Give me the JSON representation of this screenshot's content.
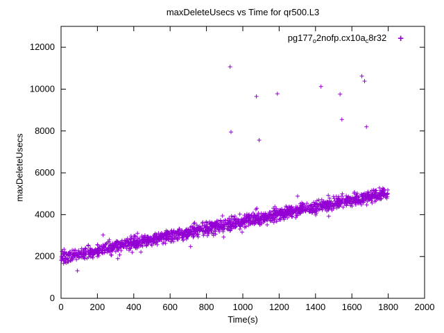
{
  "title": "maxDeleteUsecs vs Time for qr500.L3",
  "axes": {
    "xlabel": "Time(s)",
    "ylabel": "maxDeleteUsecs"
  },
  "legend": {
    "parts": [
      {
        "text": "pg177"
      },
      {
        "text": "o"
      },
      {
        "text": "2nofp.cx10a"
      },
      {
        "text": "c"
      },
      {
        "text": "8r32"
      }
    ],
    "full_name": "pg177_o2nofp.cx10a_c8r32",
    "marker_glyph": "+",
    "position": "top-right"
  },
  "colors": {
    "marker": "#9400d3",
    "axis": "#000000",
    "background": "#ffffff"
  },
  "chart_data": {
    "type": "scatter",
    "title": "maxDeleteUsecs vs Time for qr500.L3",
    "xlabel": "Time(s)",
    "ylabel": "maxDeleteUsecs",
    "xlim": [
      0,
      2000
    ],
    "ylim": [
      0,
      13000
    ],
    "xticks": [
      0,
      200,
      400,
      600,
      800,
      1000,
      1200,
      1400,
      1600,
      1800,
      2000
    ],
    "yticks": [
      0,
      2000,
      4000,
      6000,
      8000,
      10000,
      12000
    ],
    "grid": false,
    "legend_position": "top-right",
    "series": [
      {
        "name": "pg177_o2nofp.cx10a_c8r32",
        "color": "#9400d3",
        "marker": "plus",
        "trend_band": {
          "description": "dense linear rising band of samples",
          "x_min": 0,
          "x_max": 1800,
          "y_at_x_min": 1950,
          "y_at_x_max": 5050,
          "typical_noise": 210,
          "wide_noise": 430,
          "wide_fraction": 0.07,
          "point_count": 1700
        },
        "outliers": [
          [
            90,
            1320
          ],
          [
            930,
            11070
          ],
          [
            935,
            7950
          ],
          [
            1075,
            9650
          ],
          [
            1090,
            7560
          ],
          [
            1190,
            9780
          ],
          [
            1430,
            10120
          ],
          [
            1535,
            9760
          ],
          [
            1545,
            8550
          ],
          [
            1655,
            10620
          ],
          [
            1670,
            10380
          ],
          [
            1680,
            8200
          ]
        ]
      }
    ]
  }
}
